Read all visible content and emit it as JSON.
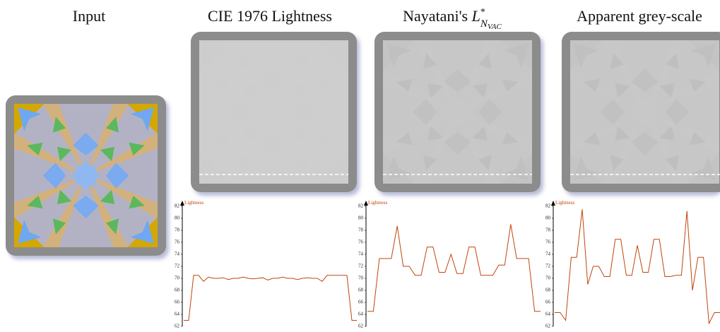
{
  "panels": [
    {
      "title": "Input"
    },
    {
      "title": "CIE 1976 Lightness"
    },
    {
      "title": {
        "text": "Nayatani's ",
        "symbol": "L",
        "sup": "*",
        "sub": "N",
        "subsub": "VAC"
      }
    },
    {
      "title": "Apparent grey-scale"
    }
  ],
  "chart_data": [
    {
      "type": "line",
      "ylabel": "Lightness",
      "color": "#c0450a",
      "ylim": [
        62,
        82
      ],
      "yticks": [
        62,
        64,
        66,
        68,
        70,
        72,
        74,
        76,
        78,
        80,
        82
      ],
      "values": [
        63,
        63,
        70.5,
        70.5,
        69.5,
        70.2,
        70,
        70,
        70.1,
        69.8,
        70,
        70,
        70.2,
        70,
        69.9,
        70,
        70.1,
        69.7,
        70,
        70,
        70.2,
        70,
        70,
        69.8,
        70,
        70.1,
        70,
        70,
        69.5,
        70.5,
        70.5,
        70.5,
        70.5,
        70.5,
        63,
        63
      ]
    },
    {
      "type": "line",
      "ylabel": "Lightness",
      "color": "#c0450a",
      "ylim": [
        62,
        82
      ],
      "yticks": [
        62,
        64,
        66,
        68,
        70,
        72,
        74,
        76,
        78,
        80,
        82
      ],
      "values": [
        64.5,
        64.5,
        73.3,
        73.3,
        73.3,
        78.7,
        72,
        72,
        70.5,
        70.5,
        75.2,
        75.2,
        71,
        71,
        74,
        70.8,
        70.8,
        75.2,
        75.2,
        70.5,
        70.5,
        70.5,
        72.2,
        72.2,
        79,
        73.3,
        73.3,
        73.3,
        64.5,
        64.5
      ]
    },
    {
      "type": "line",
      "ylabel": "Lightness",
      "color": "#c0450a",
      "ylim": [
        62,
        82
      ],
      "yticks": [
        62,
        64,
        66,
        68,
        70,
        72,
        74,
        76,
        78,
        80,
        82
      ],
      "values": [
        64.3,
        64.3,
        63,
        73.5,
        73.5,
        81.5,
        69,
        72,
        72,
        70.3,
        70.3,
        76.5,
        76.5,
        70.5,
        70.5,
        75.5,
        71,
        71,
        76.5,
        76.5,
        70.3,
        70.3,
        70.5,
        70.5,
        81.2,
        68,
        73.5,
        73.5,
        62.5,
        64.3,
        64.3
      ]
    }
  ]
}
